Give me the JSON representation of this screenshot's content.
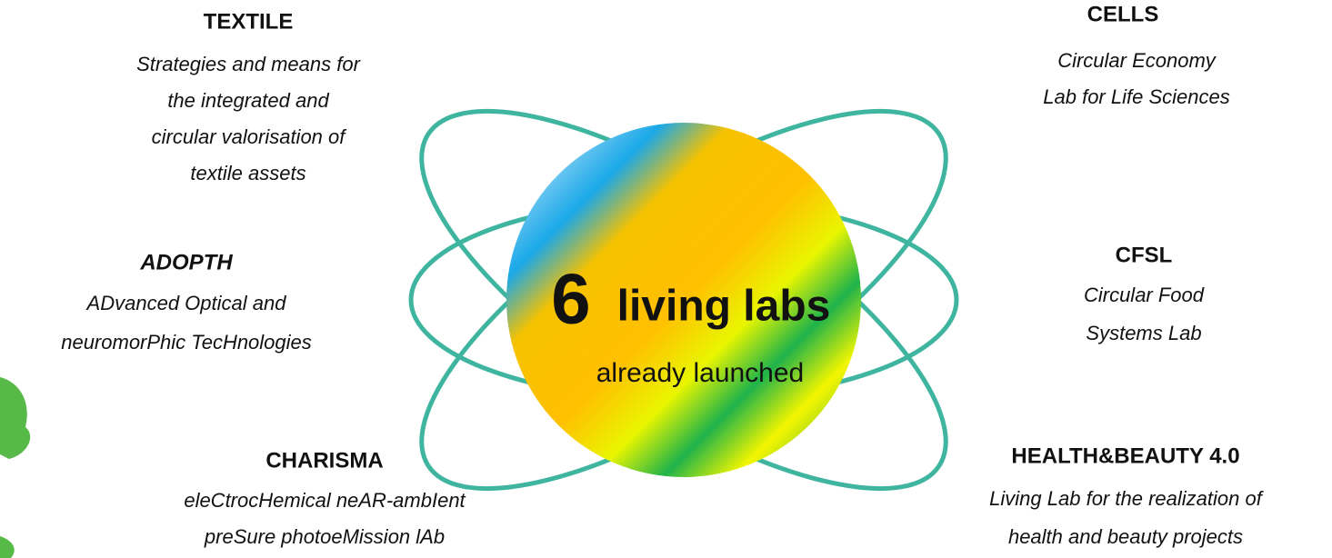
{
  "center": {
    "number": "6",
    "label": "living labs",
    "subtitle": "already launched"
  },
  "labs": [
    {
      "title": "TEXTILE",
      "description": [
        "Strategies and means for",
        "the integrated and",
        "circular valorisation of",
        "textile assets"
      ]
    },
    {
      "title": "ADOPTH",
      "description": [
        "ADvanced Optical and",
        "neuromorPhic TecHnologies"
      ]
    },
    {
      "title": "CHARISMA",
      "description": [
        "eleCtrocHemical neAR-ambIent",
        "preSure photoeMission lAb"
      ]
    },
    {
      "title": "CELLS",
      "description": [
        "Circular Economy",
        "Lab for Life Sciences"
      ]
    },
    {
      "title": "CFSL",
      "description": [
        "Circular Food",
        "Systems Lab"
      ]
    },
    {
      "title": "HEALTH&BEAUTY 4.0",
      "description": [
        "Living Lab for the realization of",
        "health and beauty projects"
      ]
    }
  ]
}
